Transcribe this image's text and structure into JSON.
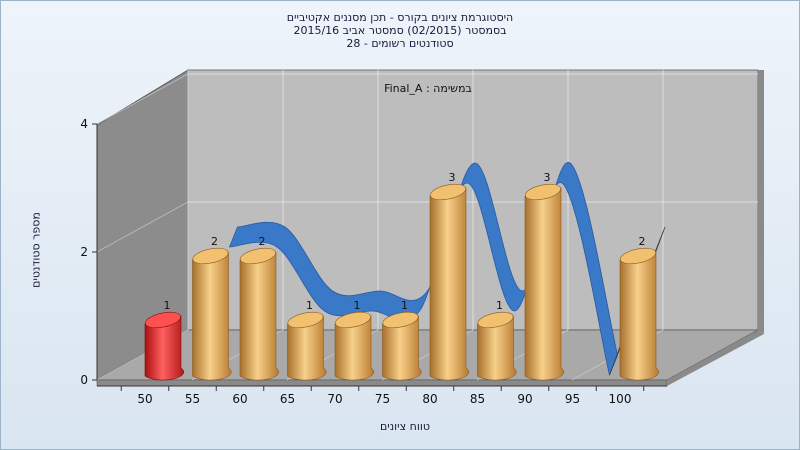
{
  "chart_data": {
    "type": "bar",
    "title_lines": [
      "היסטוגרמת ציונים בקורס - תכן מסננים אקטיביים",
      "בסמסטר  (02/2015)  סמסטר אביב 2015/16",
      "סטודנטים רשומים - 28"
    ],
    "annotation": "במשימה : Final_A",
    "xlabel": "טווח ציונים",
    "ylabel": "מספר סטודנטים",
    "categories": [
      "50",
      "55",
      "60",
      "65",
      "70",
      "75",
      "80",
      "85",
      "90",
      "95",
      "100"
    ],
    "values": [
      1,
      2,
      2,
      1,
      1,
      1,
      3,
      1,
      3,
      0,
      2
    ],
    "y_ticks": [
      "0",
      "2",
      "4"
    ],
    "ylim": [
      0,
      4
    ],
    "highlight_category": "50",
    "colors": {
      "bar": "#e0a040",
      "bar_highlight": "#e02020",
      "curve": "#3a78c8",
      "curve_tail": "#606060",
      "back_wall": "#bdbdbd",
      "side_wall": "#8a8a8a",
      "floor": "#a9a9a9"
    },
    "grid": true
  }
}
